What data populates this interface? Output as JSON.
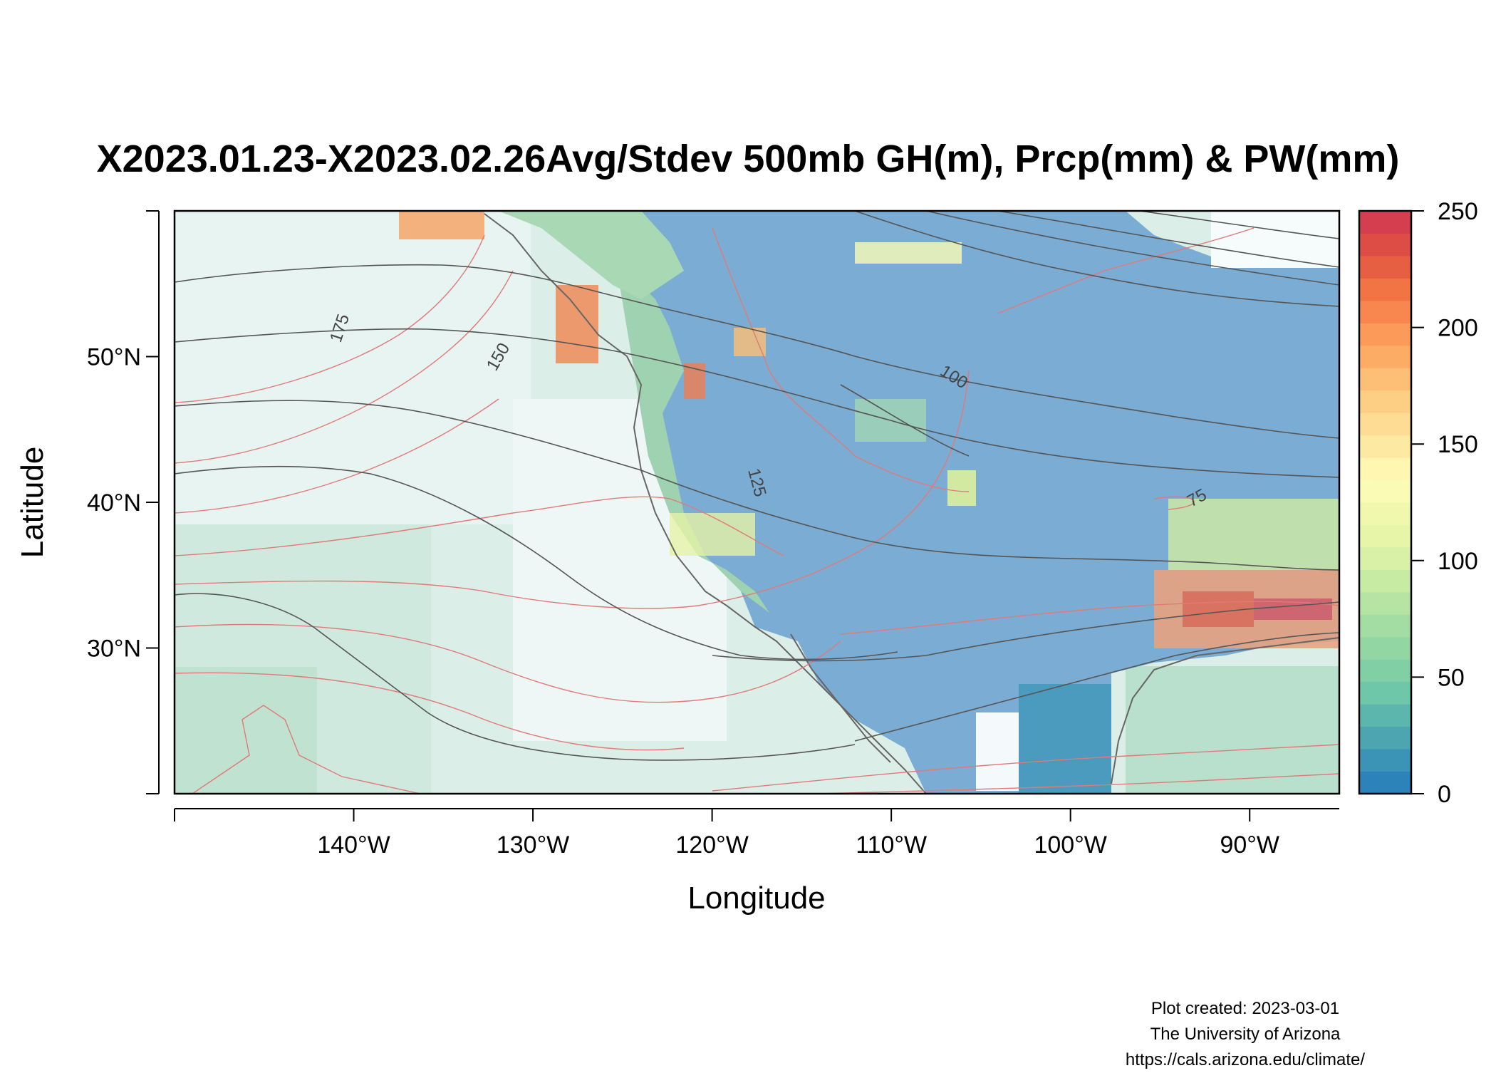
{
  "title": "X2023.01.23-X2023.02.26Avg/Stdev 500mb GH(m), Prcp(mm) & PW(mm)",
  "x_axis": {
    "label": "Longitude",
    "ticks": [
      {
        "value": -140,
        "label": "140°W"
      },
      {
        "value": -130,
        "label": "130°W"
      },
      {
        "value": -120,
        "label": "120°W"
      },
      {
        "value": -110,
        "label": "110°W"
      },
      {
        "value": -100,
        "label": "100°W"
      },
      {
        "value": -90,
        "label": "90°W"
      }
    ],
    "range": [
      -150,
      -85
    ]
  },
  "y_axis": {
    "label": "Latitude",
    "ticks": [
      {
        "value": 30,
        "label": "30°N"
      },
      {
        "value": 40,
        "label": "40°N"
      },
      {
        "value": 50,
        "label": "50°N"
      }
    ],
    "range": [
      20,
      60
    ]
  },
  "colorbar": {
    "min": 0,
    "max": 250,
    "ticks": [
      {
        "value": 0,
        "label": "0"
      },
      {
        "value": 50,
        "label": "50"
      },
      {
        "value": 100,
        "label": "100"
      },
      {
        "value": 150,
        "label": "150"
      },
      {
        "value": 200,
        "label": "200"
      },
      {
        "value": 250,
        "label": "250"
      }
    ],
    "colors": [
      "#2b83ba",
      "#3b94b6",
      "#4ca5b1",
      "#5db6ad",
      "#6ec7a8",
      "#80cfa5",
      "#92d6a4",
      "#a4dda4",
      "#b6e4a3",
      "#c8eba3",
      "#d9f1a6",
      "#e6f5a8",
      "#f0f8ad",
      "#fafcb5",
      "#fff6b2",
      "#fee9a3",
      "#fedc94",
      "#fdcf85",
      "#fdbf75",
      "#fdac66",
      "#fb9a59",
      "#f7874e",
      "#f27343",
      "#e75f43",
      "#de4c46",
      "#d53e4f"
    ]
  },
  "contour_labels": [
    {
      "label": "175"
    },
    {
      "label": "150"
    },
    {
      "label": "125"
    },
    {
      "label": "100"
    },
    {
      "label": "75"
    }
  ],
  "credits": {
    "line1": "Plot created: 2023-03-01",
    "line2": "The University of Arizona",
    "line3": "https://cals.arizona.edu/climate/"
  }
}
